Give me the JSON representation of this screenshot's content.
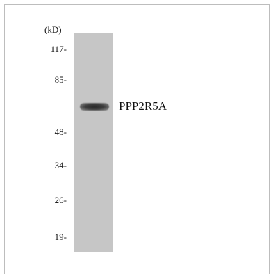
{
  "blot": {
    "unit_label": "(kD)",
    "markers": [
      {
        "label": "117-"
      },
      {
        "label": "85-"
      },
      {
        "label": "48-"
      },
      {
        "label": "34-"
      },
      {
        "label": "26-"
      },
      {
        "label": "19-"
      }
    ],
    "band_label": "PPP2R5A",
    "colors": {
      "background": "#ffffff",
      "lane": "#c6c6c6",
      "band": "#2a2a2a",
      "frame": "#bdbdbd"
    }
  }
}
